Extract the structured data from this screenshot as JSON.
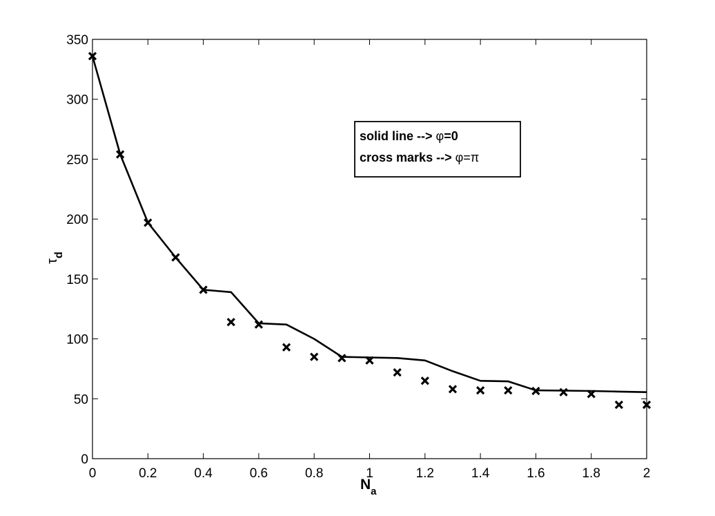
{
  "chart_data": {
    "type": "line",
    "xlabel": "N",
    "xlabel_sub": "a",
    "ylabel": "τ",
    "ylabel_sub": "d",
    "xlim": [
      0,
      2
    ],
    "ylim": [
      0,
      350
    ],
    "xticks": [
      0,
      0.2,
      0.4,
      0.6,
      0.8,
      1,
      1.2,
      1.4,
      1.6,
      1.8,
      2
    ],
    "xtick_labels": [
      "0",
      "0.2",
      "0.4",
      "0.6",
      "0.8",
      "1",
      "1.2",
      "1.4",
      "1.6",
      "1.8",
      "2"
    ],
    "yticks": [
      0,
      50,
      100,
      150,
      200,
      250,
      300,
      350
    ],
    "ytick_labels": [
      "0",
      "50",
      "100",
      "150",
      "200",
      "250",
      "300",
      "350"
    ],
    "grid": false,
    "legend_position": "top-right",
    "legend": [
      {
        "prefix": "solid line --> ",
        "symbol": "φ",
        "suffix": "=0"
      },
      {
        "prefix": "cross marks --> ",
        "symbol": "φ",
        "suffix": "=π"
      }
    ],
    "series": [
      {
        "style": "solid-line",
        "x": [
          0,
          0.1,
          0.2,
          0.3,
          0.4,
          0.5,
          0.6,
          0.7,
          0.8,
          0.9,
          1.0,
          1.1,
          1.2,
          1.3,
          1.4,
          1.5,
          1.6,
          1.7,
          1.8,
          1.9,
          2.0
        ],
        "y": [
          336,
          254,
          197,
          168,
          141,
          139,
          113,
          112,
          100,
          85,
          84.5,
          84,
          82,
          73,
          65,
          64.5,
          57,
          56.8,
          56.5,
          56,
          55.5
        ]
      },
      {
        "style": "cross-marks",
        "x": [
          0,
          0.1,
          0.2,
          0.3,
          0.4,
          0.5,
          0.6,
          0.7,
          0.8,
          0.9,
          1.0,
          1.1,
          1.2,
          1.3,
          1.4,
          1.5,
          1.6,
          1.7,
          1.8,
          1.9,
          2.0
        ],
        "y": [
          336,
          254,
          197,
          168,
          141,
          114,
          112,
          93,
          85,
          84,
          82,
          72,
          65,
          58,
          57,
          57,
          56.5,
          55.5,
          54,
          45,
          45
        ]
      }
    ]
  }
}
